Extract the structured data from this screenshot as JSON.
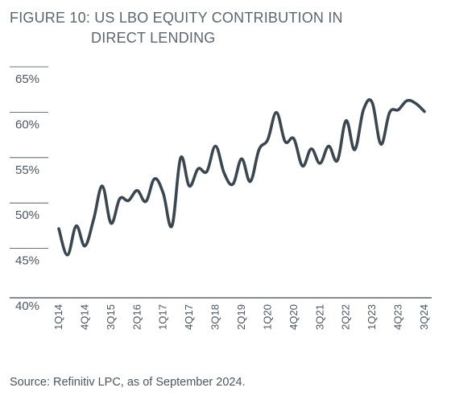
{
  "title_line1": "FIGURE 10: US LBO EQUITY CONTRIBUTION IN",
  "title_line2": "DIRECT LENDING",
  "source": "Source: Refinitiv LPC, as of September 2024.",
  "colors": {
    "line": "#3a4650",
    "grid": "#3a4650",
    "text": "#4a5560"
  },
  "chart_data": {
    "type": "line",
    "title": "FIGURE 10: US LBO EQUITY CONTRIBUTION IN DIRECT LENDING",
    "xlabel": "",
    "ylabel": "",
    "ylim": [
      40,
      66
    ],
    "yticks": [
      "40%",
      "45%",
      "50%",
      "55%",
      "60%",
      "65%"
    ],
    "ytick_values": [
      40,
      45,
      50,
      55,
      60,
      65
    ],
    "x_tick_labels": [
      "1Q14",
      "4Q14",
      "3Q15",
      "2Q16",
      "1Q17",
      "4Q17",
      "3Q18",
      "2Q19",
      "1Q20",
      "4Q20",
      "3Q21",
      "2Q22",
      "1Q23",
      "4Q23",
      "3Q24"
    ],
    "x_tick_index": [
      0,
      3,
      6,
      9,
      12,
      15,
      18,
      21,
      24,
      27,
      30,
      33,
      36,
      39,
      42
    ],
    "grid": "horizontal",
    "series": [
      {
        "x": [
          "1Q14",
          "2Q14",
          "3Q14",
          "4Q14",
          "1Q15",
          "2Q15",
          "3Q15",
          "4Q15",
          "1Q16",
          "2Q16",
          "3Q16",
          "4Q16",
          "1Q17",
          "2Q17",
          "3Q17",
          "4Q17",
          "1Q18",
          "2Q18",
          "3Q18",
          "4Q18",
          "1Q19",
          "2Q19",
          "3Q19",
          "4Q19",
          "1Q20",
          "2Q20",
          "3Q20",
          "4Q20",
          "1Q21",
          "2Q21",
          "3Q21",
          "4Q21",
          "1Q22",
          "2Q22",
          "3Q22",
          "4Q22",
          "1Q23",
          "2Q23",
          "3Q23",
          "4Q23",
          "1Q24",
          "2Q24",
          "3Q24"
        ],
        "values": [
          48.5,
          45.6,
          48.8,
          46.6,
          49.5,
          53.2,
          49.1,
          51.8,
          51.6,
          52.7,
          51.5,
          54.0,
          52.4,
          48.8,
          56.3,
          53.2,
          55.1,
          54.8,
          57.6,
          54.6,
          53.4,
          56.2,
          53.7,
          57.2,
          58.3,
          61.3,
          58.1,
          58.4,
          55.4,
          57.3,
          55.7,
          57.6,
          56.0,
          60.4,
          57.2,
          61.6,
          62.4,
          57.8,
          61.3,
          61.6,
          62.6,
          62.3,
          61.4
        ]
      }
    ]
  }
}
